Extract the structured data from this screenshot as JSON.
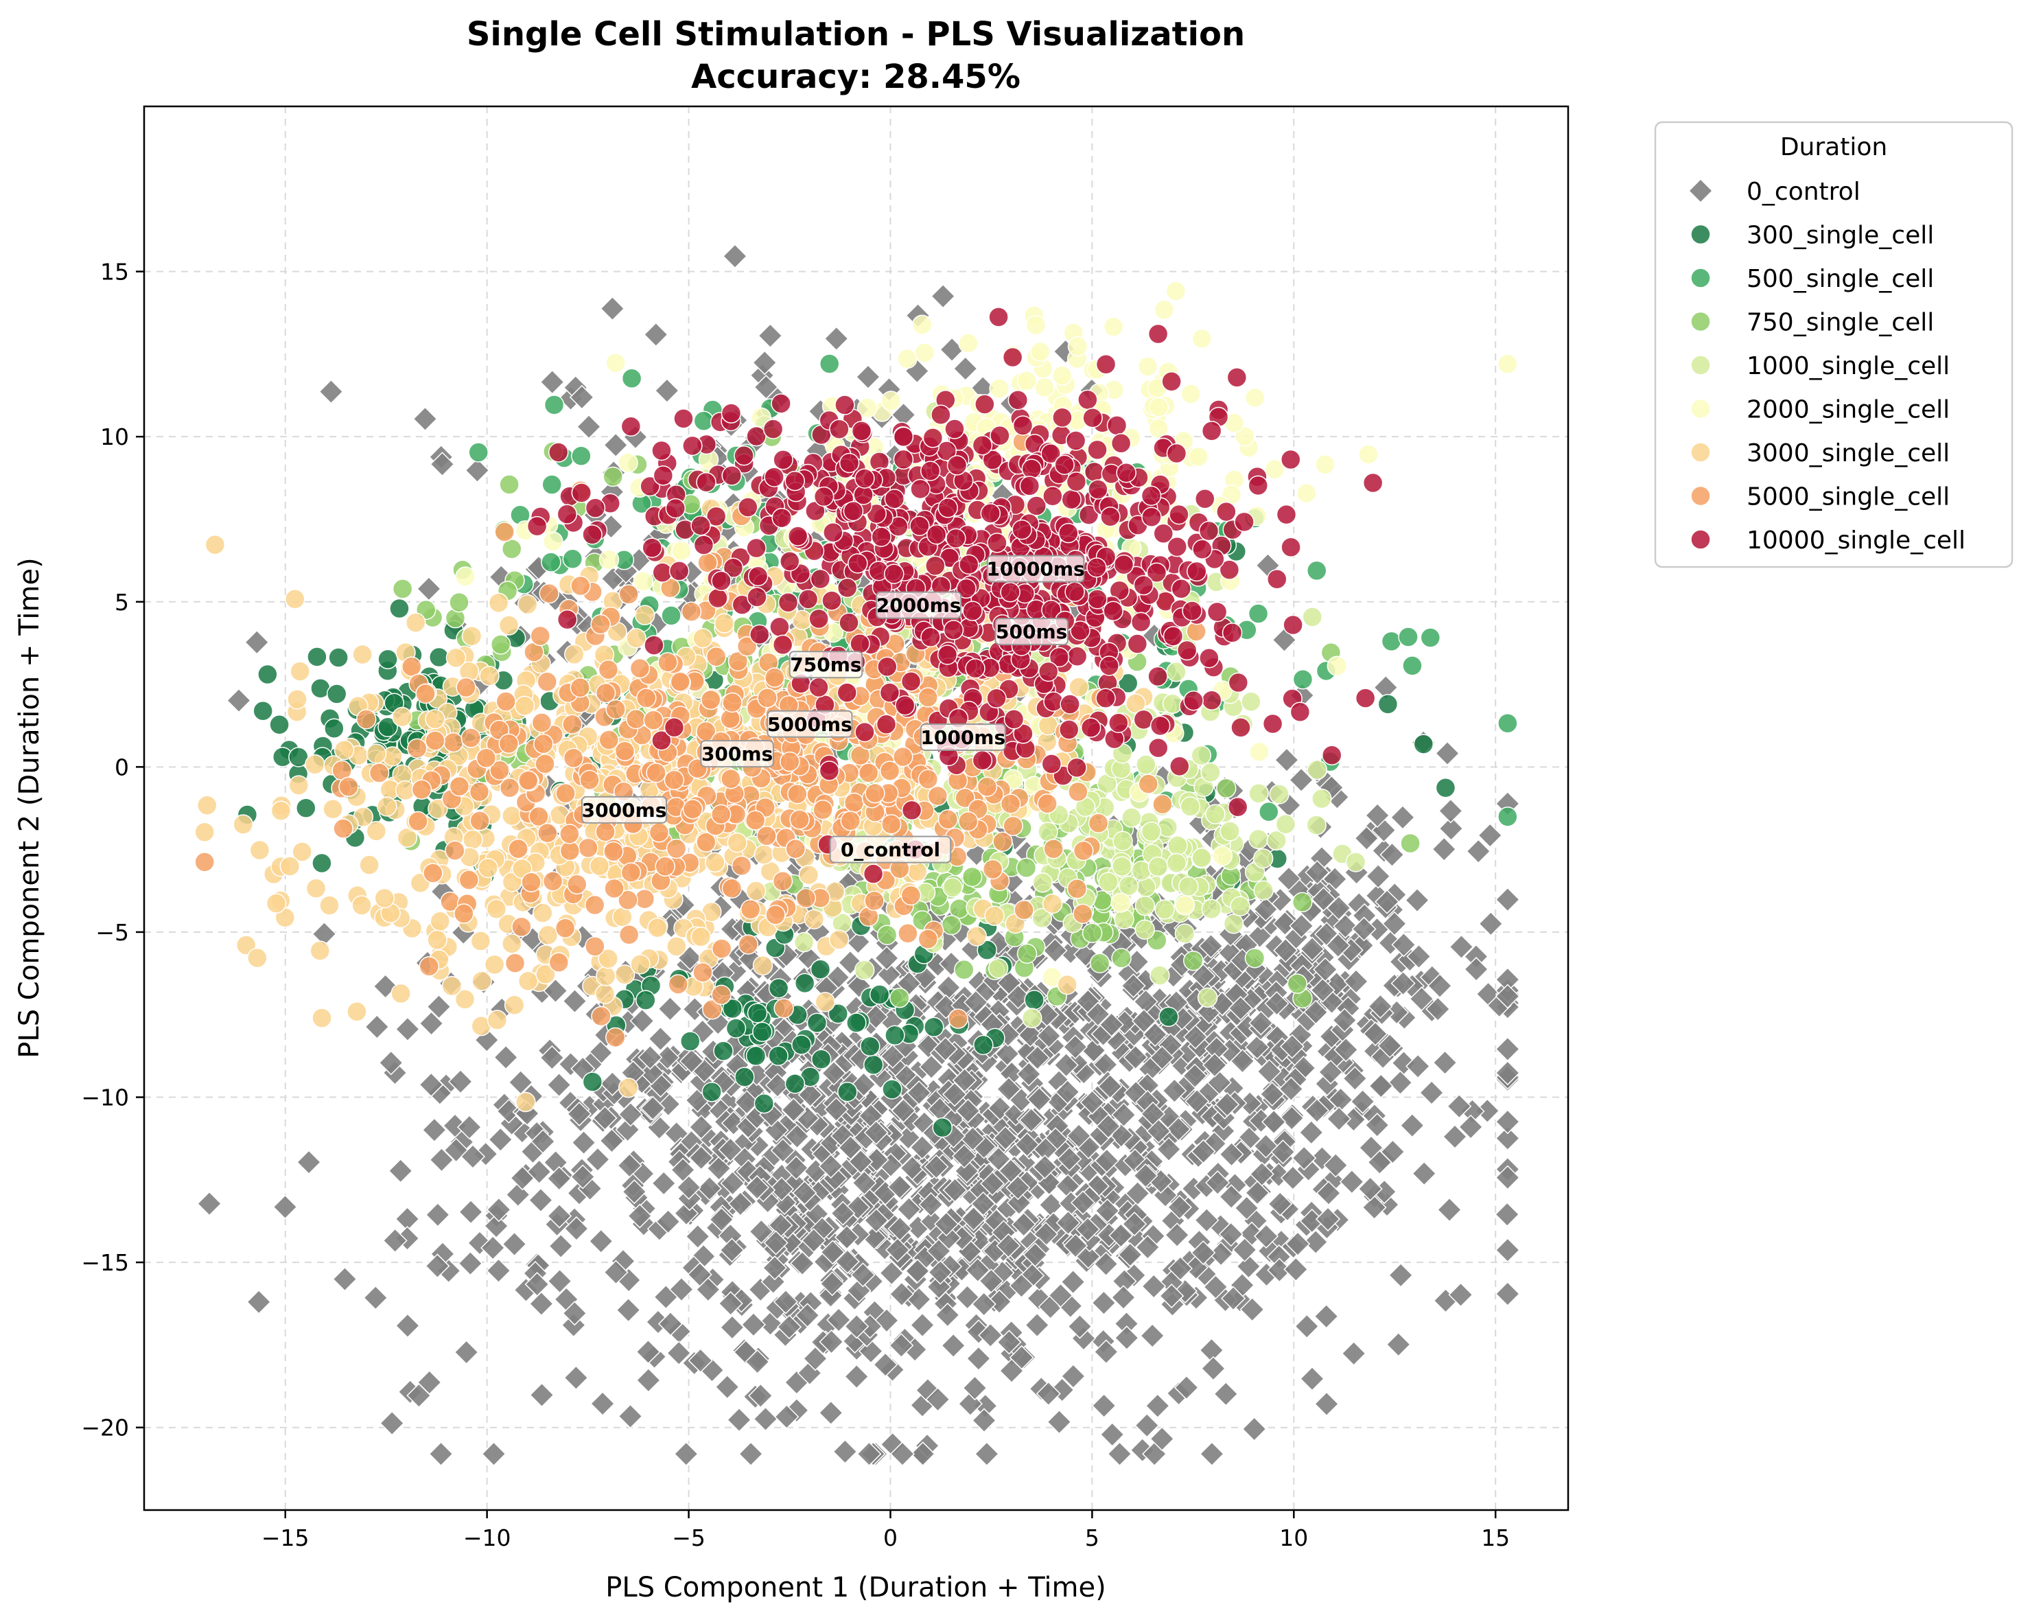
{
  "chart_data": {
    "type": "scatter",
    "title_line1": "Single Cell Stimulation - PLS Visualization",
    "title_line2": "Accuracy: 28.45%",
    "xlabel": "PLS Component 1 (Duration + Time)",
    "ylabel": "PLS Component 2 (Duration + Time)",
    "xlim": [
      -18.5,
      16.8
    ],
    "ylim": [
      -22.5,
      20
    ],
    "xticks": [
      -15,
      -10,
      -5,
      0,
      5,
      10,
      15
    ],
    "yticks": [
      -20,
      -15,
      -10,
      -5,
      0,
      5,
      10,
      15
    ],
    "xtick_labels": [
      "−15",
      "−10",
      "−5",
      "0",
      "5",
      "10",
      "15"
    ],
    "ytick_labels": [
      "−20",
      "−15",
      "−10",
      "−5",
      "0",
      "5",
      "10",
      "15"
    ],
    "grid": true,
    "legend_title": "Duration",
    "legend_placement": "outside-upper-right",
    "series": [
      {
        "name": "0_control",
        "color": "#808080",
        "marker": "diamond",
        "n": 2200,
        "clusters": [
          {
            "cx": 1.0,
            "cy": -11.0,
            "sx": 5.5,
            "sy": 4.0,
            "w": 0.7
          },
          {
            "cx": 9.5,
            "cy": -7.0,
            "sx": 2.8,
            "sy": 3.2,
            "w": 0.2
          },
          {
            "cx": -3.0,
            "cy": 6.0,
            "sx": 4.5,
            "sy": 3.5,
            "w": 0.1
          }
        ]
      },
      {
        "name": "300_single_cell",
        "color": "#1a7a45",
        "marker": "circle",
        "n": 260,
        "clusters": [
          {
            "cx": -11.5,
            "cy": 1.0,
            "sx": 1.8,
            "sy": 1.6,
            "w": 0.45
          },
          {
            "cx": -2.0,
            "cy": -7.5,
            "sx": 2.5,
            "sy": 1.3,
            "w": 0.35
          },
          {
            "cx": 3.0,
            "cy": 0.5,
            "sx": 4.0,
            "sy": 3.0,
            "w": 0.2
          }
        ]
      },
      {
        "name": "500_single_cell",
        "color": "#3daa62",
        "marker": "circle",
        "n": 200,
        "clusters": [
          {
            "cx": 3.5,
            "cy": 4.0,
            "sx": 4.5,
            "sy": 3.0,
            "w": 0.7
          },
          {
            "cx": -4.0,
            "cy": 7.0,
            "sx": 3.0,
            "sy": 2.0,
            "w": 0.3
          }
        ]
      },
      {
        "name": "750_single_cell",
        "color": "#8fcc66",
        "marker": "circle",
        "n": 320,
        "clusters": [
          {
            "cx": -2.0,
            "cy": 3.0,
            "sx": 5.0,
            "sy": 3.0,
            "w": 0.55
          },
          {
            "cx": 4.0,
            "cy": -3.5,
            "sx": 3.0,
            "sy": 1.5,
            "w": 0.45
          }
        ]
      },
      {
        "name": "1000_single_cell",
        "color": "#d4eb9a",
        "marker": "circle",
        "n": 320,
        "clusters": [
          {
            "cx": 2.5,
            "cy": 1.0,
            "sx": 3.5,
            "sy": 3.5,
            "w": 0.6
          },
          {
            "cx": 7.0,
            "cy": -2.5,
            "sx": 1.5,
            "sy": 1.5,
            "w": 0.4
          }
        ]
      },
      {
        "name": "2000_single_cell",
        "color": "#fcfcc0",
        "marker": "circle",
        "n": 340,
        "clusters": [
          {
            "cx": 0.5,
            "cy": 5.0,
            "sx": 4.5,
            "sy": 3.5,
            "w": 0.6
          },
          {
            "cx": 4.0,
            "cy": 10.0,
            "sx": 3.0,
            "sy": 1.5,
            "w": 0.4
          }
        ]
      },
      {
        "name": "3000_single_cell",
        "color": "#fad48e",
        "marker": "circle",
        "n": 700,
        "clusters": [
          {
            "cx": -8.0,
            "cy": -1.5,
            "sx": 3.5,
            "sy": 3.0,
            "w": 0.65
          },
          {
            "cx": -2.0,
            "cy": 0.5,
            "sx": 3.5,
            "sy": 3.0,
            "w": 0.35
          }
        ]
      },
      {
        "name": "5000_single_cell",
        "color": "#f5a064",
        "marker": "circle",
        "n": 500,
        "clusters": [
          {
            "cx": -5.0,
            "cy": 0.0,
            "sx": 4.0,
            "sy": 3.0,
            "w": 0.7
          },
          {
            "cx": 1.0,
            "cy": 0.0,
            "sx": 3.0,
            "sy": 2.0,
            "w": 0.3
          }
        ]
      },
      {
        "name": "10000_single_cell",
        "color": "#b5183a",
        "marker": "circle",
        "n": 720,
        "clusters": [
          {
            "cx": 3.0,
            "cy": 5.5,
            "sx": 3.0,
            "sy": 2.6,
            "w": 0.75
          },
          {
            "cx": -1.0,
            "cy": 8.0,
            "sx": 3.0,
            "sy": 1.5,
            "w": 0.25
          }
        ]
      }
    ],
    "annotations": [
      {
        "text": "10000ms",
        "x": 3.6,
        "y": 6.0
      },
      {
        "text": "2000ms",
        "x": 0.7,
        "y": 4.9
      },
      {
        "text": "500ms",
        "x": 3.5,
        "y": 4.1
      },
      {
        "text": "750ms",
        "x": -1.6,
        "y": 3.1
      },
      {
        "text": "5000ms",
        "x": -2.0,
        "y": 1.3
      },
      {
        "text": "1000ms",
        "x": 1.8,
        "y": 0.9
      },
      {
        "text": "300ms",
        "x": -3.8,
        "y": 0.4
      },
      {
        "text": "3000ms",
        "x": -6.6,
        "y": -1.3
      },
      {
        "text": "0_control",
        "x": 0.0,
        "y": -2.5
      }
    ]
  }
}
